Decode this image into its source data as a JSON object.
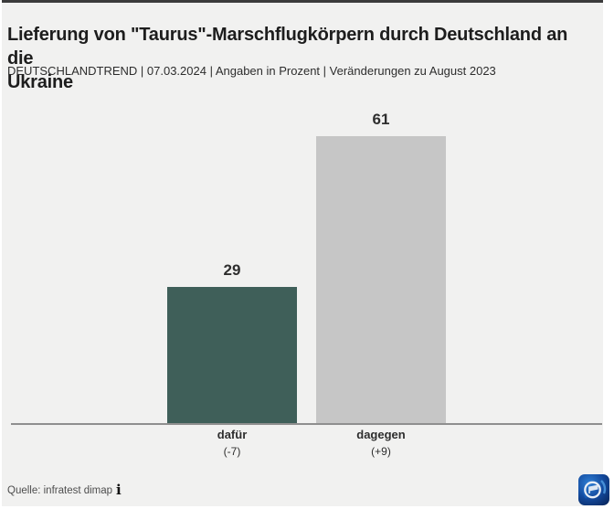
{
  "header": {
    "title_lines": [
      "Lieferung von \"Taurus\"-Marschflugkörpern durch Deutschland an die",
      "Ukraine"
    ],
    "subtitle": "DEUTSCHLANDTREND | 07.03.2024 | Angaben in Prozent | Veränderungen zu August 2023"
  },
  "chart_data": {
    "type": "bar",
    "title": "Lieferung von \"Taurus\"-Marschflugkörpern durch Deutschland an die Ukraine",
    "subtitle": "DEUTSCHLANDTREND | 07.03.2024 | Angaben in Prozent | Veränderungen zu August 2023",
    "categories": [
      "dafür",
      "dagegen"
    ],
    "values": [
      29,
      61
    ],
    "deltas": [
      "(-7)",
      "(+9)"
    ],
    "bar_colors": [
      "#3f5f59",
      "#c6c6c6"
    ],
    "unit": "Prozent",
    "xlabel": "",
    "ylabel": "",
    "ylim": [
      0,
      70
    ],
    "grid": false,
    "axis_shown": false,
    "value_labels_shown": true,
    "legend": "none"
  },
  "footer": {
    "source": "Quelle: infratest dimap",
    "info_icon": "i",
    "logo": "tagesschau-ard-logo"
  },
  "colors": {
    "background": "#f1f1f0",
    "top_border": "#3b3b3b",
    "baseline": "#8f8f8f",
    "title_text": "#1d1d1d",
    "subtitle_text": "#2d2d2d",
    "value_text": "#2e2e2e",
    "source_text": "#4e4e4e",
    "bar_dafur": "#3f5f59",
    "bar_dagegen": "#c6c6c6",
    "logo_blue": "#134a9e"
  }
}
